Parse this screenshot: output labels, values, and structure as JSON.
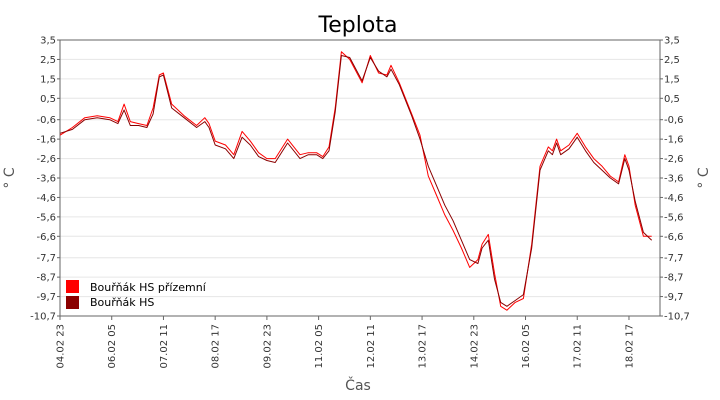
{
  "chart_data": {
    "type": "line",
    "title": "Teplota",
    "xlabel": "Čas",
    "ylabel_left": "° C",
    "ylabel_right": "° C",
    "ylim": [
      -10.7,
      3.5
    ],
    "yticks": [
      "3,5",
      "2,5",
      "1,5",
      "0,5",
      "-0,6",
      "-1,6",
      "-2,6",
      "-3,6",
      "-4,6",
      "-5,6",
      "-6,6",
      "-7,7",
      "-8,7",
      "-9,7",
      "-10,7"
    ],
    "ytick_values": [
      3.5,
      2.5,
      1.5,
      0.5,
      -0.6,
      -1.6,
      -2.6,
      -3.6,
      -4.6,
      -5.6,
      -6.6,
      -7.7,
      -8.7,
      -9.7,
      -10.7
    ],
    "xlim": [
      0,
      14.5
    ],
    "xticks": [
      "04.02 23",
      "06.02 05",
      "07.02 11",
      "08.02 17",
      "09.02 23",
      "11.02 05",
      "12.02 11",
      "13.02 17",
      "14.02 23",
      "16.02 05",
      "17.02 11",
      "18.02 17"
    ],
    "xtick_values": [
      0,
      1.25,
      2.5,
      3.75,
      5,
      6.25,
      7.5,
      8.75,
      10,
      11.25,
      12.5,
      13.75
    ],
    "grid": true,
    "legend_position": "bottom-left",
    "colors": {
      "series1": "#ff0000",
      "series2": "#8b0000"
    },
    "series": [
      {
        "name": "Bouřňák HS přízemní",
        "color": "#ff0000",
        "x": [
          0,
          0.3,
          0.6,
          0.9,
          1.2,
          1.4,
          1.55,
          1.7,
          1.9,
          2.1,
          2.25,
          2.4,
          2.5,
          2.7,
          3.0,
          3.3,
          3.5,
          3.6,
          3.75,
          4.0,
          4.2,
          4.4,
          4.6,
          4.8,
          5.0,
          5.2,
          5.5,
          5.8,
          6.0,
          6.2,
          6.35,
          6.5,
          6.65,
          6.8,
          7.0,
          7.3,
          7.5,
          7.7,
          7.9,
          8.0,
          8.2,
          8.5,
          8.7,
          8.9,
          9.1,
          9.3,
          9.5,
          9.7,
          9.9,
          10.1,
          10.2,
          10.35,
          10.5,
          10.65,
          10.8,
          11.0,
          11.2,
          11.4,
          11.6,
          11.8,
          11.9,
          12.0,
          12.1,
          12.3,
          12.5,
          12.7,
          12.9,
          13.1,
          13.3,
          13.5,
          13.65,
          13.75,
          13.9,
          14.1,
          14.3
        ],
        "values": [
          -1.4,
          -1.0,
          -0.5,
          -0.4,
          -0.5,
          -0.7,
          0.2,
          -0.7,
          -0.8,
          -0.9,
          0.0,
          1.7,
          1.8,
          0.2,
          -0.4,
          -0.9,
          -0.5,
          -0.8,
          -1.7,
          -1.9,
          -2.4,
          -1.2,
          -1.7,
          -2.3,
          -2.6,
          -2.6,
          -1.6,
          -2.4,
          -2.3,
          -2.3,
          -2.5,
          -2.0,
          0.0,
          2.9,
          2.5,
          1.3,
          2.7,
          1.8,
          1.7,
          2.2,
          1.3,
          -0.3,
          -1.4,
          -3.5,
          -4.5,
          -5.5,
          -6.3,
          -7.2,
          -8.2,
          -7.8,
          -7.0,
          -6.5,
          -8.5,
          -10.2,
          -10.4,
          -10.0,
          -9.8,
          -7.0,
          -3.0,
          -2.0,
          -2.2,
          -1.6,
          -2.2,
          -1.9,
          -1.3,
          -2.0,
          -2.6,
          -3.0,
          -3.5,
          -3.8,
          -2.4,
          -3.0,
          -5.0,
          -6.6,
          -6.6
        ]
      },
      {
        "name": "Bouřňák HS",
        "color": "#8b0000",
        "x": [
          0,
          0.3,
          0.6,
          0.9,
          1.2,
          1.4,
          1.55,
          1.7,
          1.9,
          2.1,
          2.25,
          2.4,
          2.5,
          2.7,
          3.0,
          3.3,
          3.5,
          3.6,
          3.75,
          4.0,
          4.2,
          4.4,
          4.6,
          4.8,
          5.0,
          5.2,
          5.5,
          5.8,
          6.0,
          6.2,
          6.35,
          6.5,
          6.65,
          6.8,
          7.0,
          7.3,
          7.5,
          7.7,
          7.9,
          8.0,
          8.2,
          8.5,
          8.7,
          8.9,
          9.1,
          9.3,
          9.5,
          9.7,
          9.9,
          10.1,
          10.2,
          10.35,
          10.5,
          10.65,
          10.8,
          11.0,
          11.2,
          11.4,
          11.6,
          11.8,
          11.9,
          12.0,
          12.1,
          12.3,
          12.5,
          12.7,
          12.9,
          13.1,
          13.3,
          13.5,
          13.65,
          13.75,
          13.9,
          14.1,
          14.3
        ],
        "values": [
          -1.3,
          -1.1,
          -0.6,
          -0.5,
          -0.6,
          -0.8,
          -0.1,
          -0.9,
          -0.9,
          -1.0,
          -0.3,
          1.6,
          1.7,
          0.0,
          -0.5,
          -1.0,
          -0.7,
          -1.0,
          -1.9,
          -2.1,
          -2.6,
          -1.5,
          -1.9,
          -2.5,
          -2.7,
          -2.8,
          -1.8,
          -2.6,
          -2.4,
          -2.4,
          -2.6,
          -2.2,
          -0.2,
          2.7,
          2.6,
          1.4,
          2.6,
          1.9,
          1.6,
          2.0,
          1.2,
          -0.4,
          -1.6,
          -3.0,
          -4.0,
          -5.0,
          -5.8,
          -6.8,
          -7.8,
          -8.0,
          -7.2,
          -6.8,
          -8.8,
          -10.0,
          -10.2,
          -9.9,
          -9.6,
          -7.2,
          -3.2,
          -2.2,
          -2.4,
          -1.8,
          -2.4,
          -2.1,
          -1.5,
          -2.2,
          -2.8,
          -3.2,
          -3.6,
          -3.9,
          -2.6,
          -3.2,
          -4.8,
          -6.4,
          -6.8
        ]
      }
    ]
  }
}
